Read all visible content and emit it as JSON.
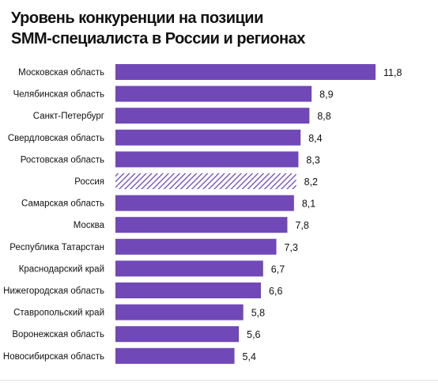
{
  "chart_data": {
    "type": "bar",
    "orientation": "horizontal",
    "title_lines": [
      "Уровень конкуренции на позиции",
      "SMM-специалиста в России и регионах"
    ],
    "categories": [
      "Московская область",
      "Челябинская область",
      "Санкт-Петербург",
      "Свердловская область",
      "Ростовская область",
      "Россия",
      "Самарская область",
      "Москва",
      "Республика Татарстан",
      "Краснодарский край",
      "Нижегородская область",
      "Ставропольский край",
      "Воронежская область",
      "Новосибирская область"
    ],
    "values": [
      11.8,
      8.9,
      8.8,
      8.4,
      8.3,
      8.2,
      8.1,
      7.8,
      7.3,
      6.7,
      6.6,
      5.8,
      5.6,
      5.4
    ],
    "value_labels": [
      "11,8",
      "8,9",
      "8,8",
      "8,4",
      "8,3",
      "8,2",
      "8,1",
      "7,8",
      "7,3",
      "6,7",
      "6,6",
      "5,8",
      "5,6",
      "5,4"
    ],
    "highlight_category": "Россия",
    "bar_color": "#7048b8",
    "highlight_pattern": "diagonal-hatch",
    "xlim": [
      0,
      11.8
    ],
    "grid": false,
    "legend": "none"
  }
}
